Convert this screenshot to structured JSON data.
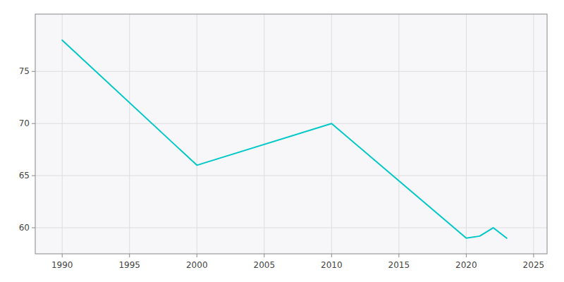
{
  "chart_data": {
    "type": "line",
    "x": [
      1990,
      2000,
      2010,
      2020,
      2021,
      2022,
      2023
    ],
    "values": [
      78.0,
      66.0,
      70.0,
      59.0,
      59.2,
      60.0,
      59.0
    ],
    "color": "#00C8C8",
    "xlim": [
      1988,
      2026
    ],
    "ylim": [
      57.5,
      80.5
    ],
    "xticks": [
      1990,
      1995,
      2000,
      2005,
      2010,
      2015,
      2020,
      2025
    ],
    "yticks": [
      60,
      65,
      70,
      75
    ],
    "grid": true
  }
}
